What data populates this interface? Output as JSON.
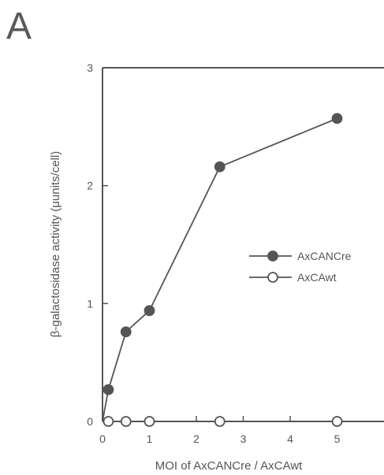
{
  "panel_label": "A",
  "chart_data": {
    "type": "line",
    "xlabel": "MOI of AxCANCre / AxCAwt",
    "ylabel": "β-galactosidase activity (μunits/cell)",
    "xlim": [
      0,
      6
    ],
    "ylim": [
      0,
      3
    ],
    "x_ticks": [
      0,
      1,
      2,
      3,
      4,
      5
    ],
    "y_ticks": [
      0,
      1,
      2,
      3
    ],
    "grid": false,
    "legend_position": "right",
    "series": [
      {
        "name": "AxCANCre",
        "marker": "filled-circle",
        "color": "#555555",
        "x": [
          0,
          0.125,
          0.5,
          1,
          2.5,
          5
        ],
        "y": [
          0,
          0.27,
          0.76,
          0.94,
          2.16,
          2.57
        ]
      },
      {
        "name": "AxCAwt",
        "marker": "open-circle",
        "color": "#555555",
        "x": [
          0,
          0.125,
          0.5,
          1,
          2.5,
          5
        ],
        "y": [
          0,
          0,
          0,
          0,
          0,
          0
        ]
      }
    ]
  }
}
